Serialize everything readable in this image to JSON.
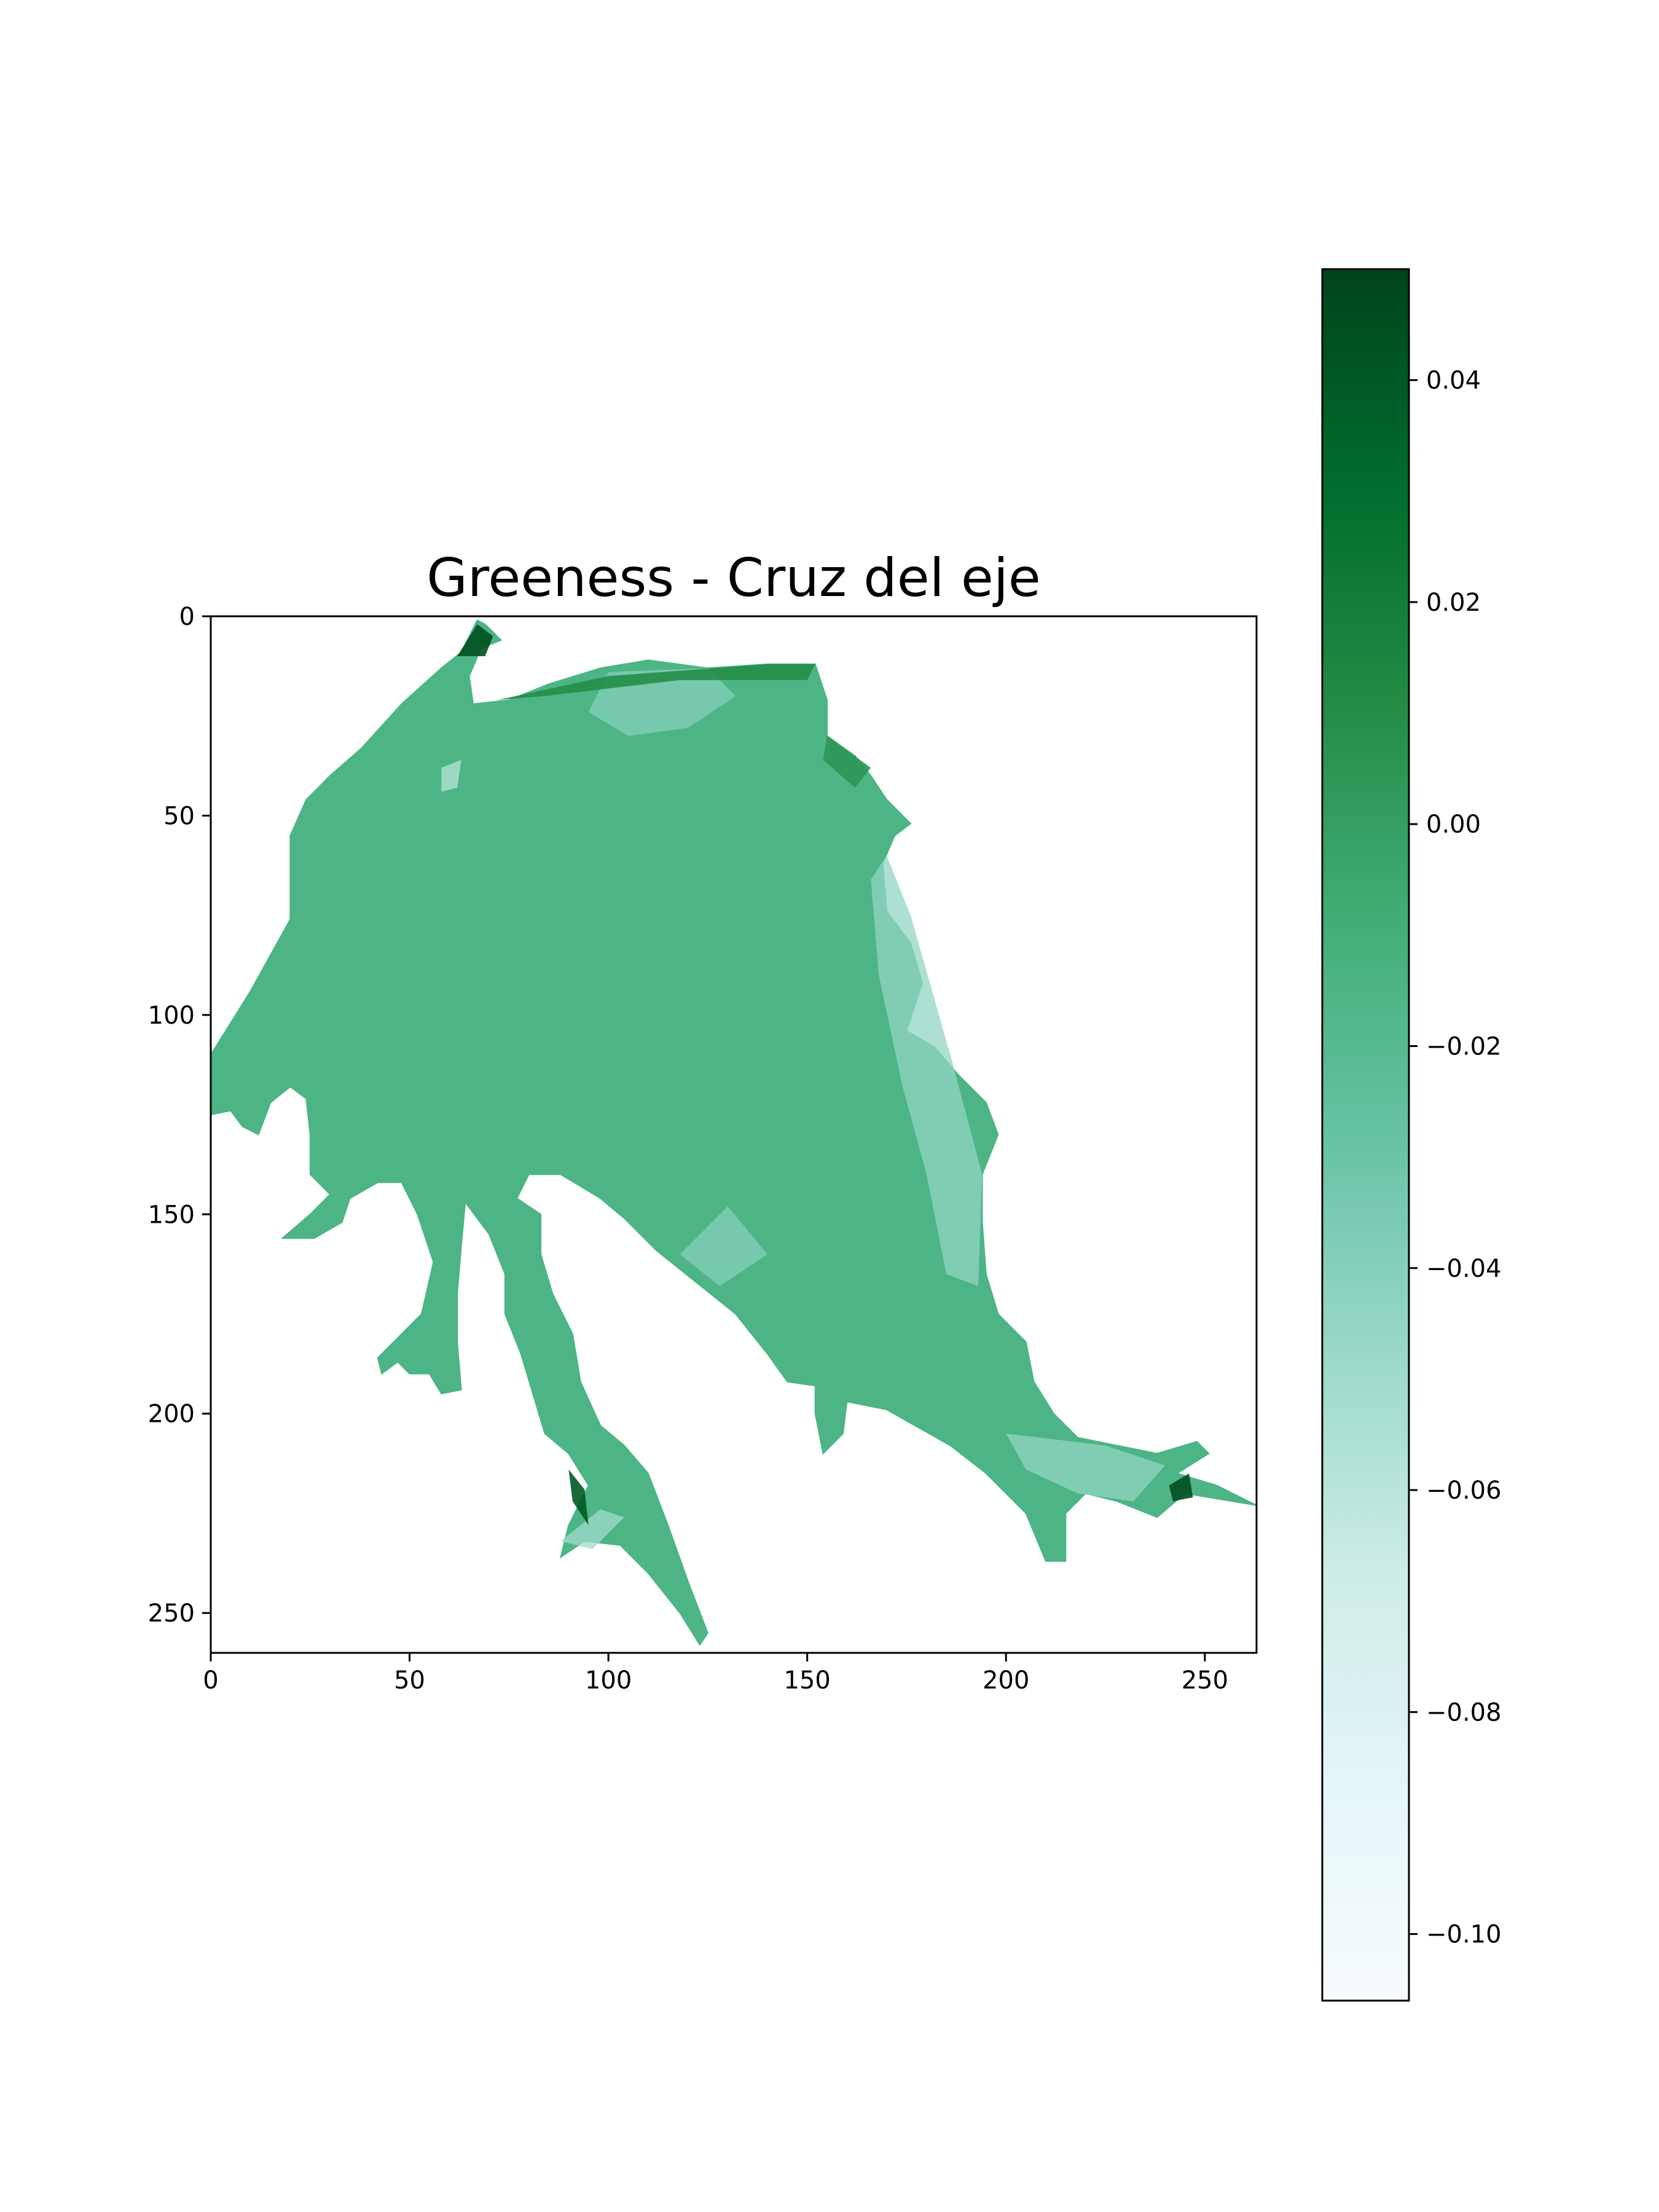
{
  "chart_data": {
    "type": "heatmap",
    "title": "Greeness - Cruz del eje",
    "xlabel": "",
    "ylabel": "",
    "xlim": [
      0,
      263
    ],
    "ylim": [
      260,
      0
    ],
    "x_ticks": [
      0,
      50,
      100,
      150,
      200,
      250
    ],
    "y_ticks": [
      0,
      50,
      100,
      150,
      200,
      250
    ],
    "x_tick_labels": [
      "0",
      "50",
      "100",
      "150",
      "200",
      "250"
    ],
    "y_tick_labels": [
      "0",
      "50",
      "100",
      "150",
      "200",
      "250"
    ],
    "grid": false,
    "colormap": "BuGn",
    "colormap_stops": [
      "#f7fcfd",
      "#e5f5f9",
      "#ccece6",
      "#99d8c9",
      "#66c2a4",
      "#41ae76",
      "#238b45",
      "#006d2c",
      "#00441b"
    ],
    "colorbar": {
      "range": [
        -0.106,
        0.05
      ],
      "ticks": [
        -0.1,
        -0.08,
        -0.06,
        -0.04,
        -0.02,
        0.0,
        0.02,
        0.04
      ],
      "tick_labels": [
        "−0.10",
        "−0.08",
        "−0.06",
        "−0.04",
        "−0.02",
        "0.00",
        "0.02",
        "0.04"
      ]
    },
    "typical_value": -0.015,
    "region_outline": [
      [
        0,
        110
      ],
      [
        10,
        94
      ],
      [
        20,
        76
      ],
      [
        20,
        55
      ],
      [
        24,
        46
      ],
      [
        30,
        40
      ],
      [
        38,
        33
      ],
      [
        48,
        22
      ],
      [
        58,
        13
      ],
      [
        63,
        9
      ],
      [
        67,
        1
      ],
      [
        69,
        2
      ],
      [
        73,
        6
      ],
      [
        68,
        8
      ],
      [
        65,
        15
      ],
      [
        66,
        22
      ],
      [
        75,
        21
      ],
      [
        85,
        17
      ],
      [
        98,
        13
      ],
      [
        110,
        11
      ],
      [
        125,
        13
      ],
      [
        140,
        12
      ],
      [
        152,
        12
      ],
      [
        155,
        21
      ],
      [
        155,
        30
      ],
      [
        162,
        35
      ],
      [
        166,
        40
      ],
      [
        170,
        46
      ],
      [
        176,
        52
      ],
      [
        172,
        55
      ],
      [
        169,
        62
      ],
      [
        170,
        74
      ],
      [
        176,
        82
      ],
      [
        179,
        92
      ],
      [
        175,
        104
      ],
      [
        182,
        108
      ],
      [
        188,
        115
      ],
      [
        195,
        122
      ],
      [
        198,
        130
      ],
      [
        194,
        140
      ],
      [
        194,
        152
      ],
      [
        195,
        165
      ],
      [
        198,
        175
      ],
      [
        205,
        182
      ],
      [
        207,
        192
      ],
      [
        212,
        200
      ],
      [
        218,
        206
      ],
      [
        228,
        208
      ],
      [
        238,
        210
      ],
      [
        248,
        207
      ],
      [
        251,
        210
      ],
      [
        243,
        215
      ],
      [
        253,
        218
      ],
      [
        263,
        223
      ],
      [
        245,
        220
      ],
      [
        238,
        226
      ],
      [
        228,
        222
      ],
      [
        220,
        220
      ],
      [
        215,
        225
      ],
      [
        215,
        237
      ],
      [
        210,
        237
      ],
      [
        205,
        225
      ],
      [
        195,
        215
      ],
      [
        186,
        208
      ],
      [
        170,
        199
      ],
      [
        160,
        197
      ],
      [
        159,
        205
      ],
      [
        154,
        210
      ],
      [
        152,
        200
      ],
      [
        152,
        193
      ],
      [
        145,
        192
      ],
      [
        140,
        185
      ],
      [
        132,
        175
      ],
      [
        122,
        167
      ],
      [
        112,
        159
      ],
      [
        104,
        151
      ],
      [
        98,
        146
      ],
      [
        88,
        140
      ],
      [
        80,
        140
      ],
      [
        77,
        146
      ],
      [
        83,
        150
      ],
      [
        83,
        160
      ],
      [
        86,
        170
      ],
      [
        91,
        180
      ],
      [
        93,
        192
      ],
      [
        98,
        203
      ],
      [
        104,
        208
      ],
      [
        110,
        215
      ],
      [
        115,
        228
      ],
      [
        120,
        242
      ],
      [
        125,
        255
      ],
      [
        123,
        258
      ],
      [
        118,
        250
      ],
      [
        110,
        240
      ],
      [
        103,
        233
      ],
      [
        94,
        232
      ],
      [
        88,
        236
      ],
      [
        90,
        228
      ],
      [
        95,
        218
      ],
      [
        90,
        210
      ],
      [
        84,
        205
      ],
      [
        81,
        195
      ],
      [
        78,
        185
      ],
      [
        74,
        175
      ],
      [
        74,
        165
      ],
      [
        70,
        155
      ],
      [
        64,
        147
      ],
      [
        63,
        158
      ],
      [
        62,
        170
      ],
      [
        62,
        182
      ],
      [
        63,
        194
      ],
      [
        58,
        195
      ],
      [
        55,
        190
      ],
      [
        50,
        190
      ],
      [
        47,
        187
      ],
      [
        43,
        190
      ],
      [
        42,
        186
      ],
      [
        48,
        180
      ],
      [
        53,
        175
      ],
      [
        56,
        162
      ],
      [
        52,
        150
      ],
      [
        48,
        142
      ],
      [
        42,
        142
      ],
      [
        35,
        146
      ],
      [
        33,
        152
      ],
      [
        26,
        156
      ],
      [
        18,
        156
      ],
      [
        25,
        150
      ],
      [
        30,
        145
      ],
      [
        25,
        140
      ],
      [
        25,
        130
      ],
      [
        24,
        121
      ],
      [
        20,
        118
      ],
      [
        15,
        122
      ],
      [
        12,
        130
      ],
      [
        8,
        128
      ],
      [
        5,
        124
      ],
      [
        0,
        125
      ],
      [
        0,
        110
      ]
    ],
    "patches": [
      {
        "kind": "light",
        "value": -0.045,
        "points": [
          [
            170,
            60
          ],
          [
            176,
            75
          ],
          [
            186,
            110
          ],
          [
            194,
            140
          ],
          [
            193,
            168
          ],
          [
            185,
            165
          ],
          [
            180,
            140
          ],
          [
            174,
            118
          ],
          [
            168,
            90
          ],
          [
            166,
            66
          ]
        ]
      },
      {
        "kind": "light",
        "value": -0.04,
        "points": [
          [
            100,
            14
          ],
          [
            125,
            13
          ],
          [
            132,
            20
          ],
          [
            120,
            28
          ],
          [
            105,
            30
          ],
          [
            95,
            24
          ]
        ]
      },
      {
        "kind": "light",
        "value": -0.045,
        "points": [
          [
            200,
            205
          ],
          [
            225,
            208
          ],
          [
            240,
            213
          ],
          [
            232,
            222
          ],
          [
            218,
            220
          ],
          [
            205,
            214
          ]
        ]
      },
      {
        "kind": "light",
        "value": -0.05,
        "points": [
          [
            88,
            232
          ],
          [
            98,
            224
          ],
          [
            104,
            226
          ],
          [
            96,
            234
          ]
        ]
      },
      {
        "kind": "light",
        "value": -0.06,
        "points": [
          [
            58,
            38
          ],
          [
            63,
            36
          ],
          [
            62,
            43
          ],
          [
            58,
            44
          ]
        ]
      },
      {
        "kind": "light",
        "value": -0.04,
        "points": [
          [
            130,
            148
          ],
          [
            140,
            160
          ],
          [
            128,
            168
          ],
          [
            118,
            160
          ]
        ]
      },
      {
        "kind": "dark",
        "value": 0.045,
        "points": [
          [
            62,
            10
          ],
          [
            67,
            2
          ],
          [
            71,
            5
          ],
          [
            69,
            10
          ]
        ]
      },
      {
        "kind": "dark",
        "value": 0.04,
        "points": [
          [
            90,
            214
          ],
          [
            94,
            219
          ],
          [
            95,
            228
          ],
          [
            91,
            222
          ]
        ]
      },
      {
        "kind": "dark",
        "value": 0.045,
        "points": [
          [
            241,
            218
          ],
          [
            246,
            215
          ],
          [
            247,
            221
          ],
          [
            242,
            222
          ]
        ]
      },
      {
        "kind": "dark",
        "value": 0.01,
        "points": [
          [
            72,
            21
          ],
          [
            100,
            15
          ],
          [
            140,
            12
          ],
          [
            152,
            12
          ],
          [
            150,
            16
          ],
          [
            118,
            16
          ],
          [
            84,
            20
          ]
        ]
      },
      {
        "kind": "dark",
        "value": 0.005,
        "points": [
          [
            155,
            30
          ],
          [
            166,
            38
          ],
          [
            162,
            43
          ],
          [
            154,
            36
          ]
        ]
      }
    ]
  }
}
